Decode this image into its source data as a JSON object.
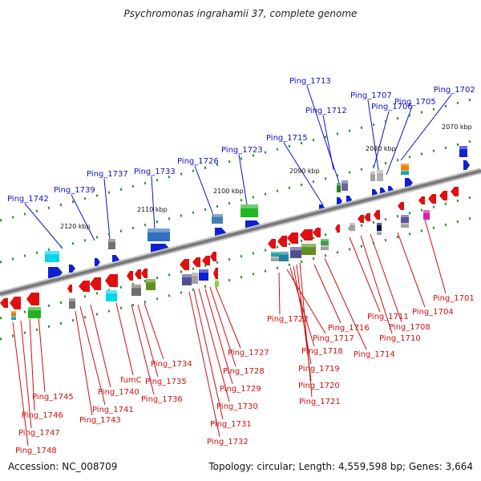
{
  "title": "Psychromonas ingrahamii 37, complete genome",
  "accession": "Accession: NC_008709",
  "topology": "Topology: circular; Length: 4,559,598 bp; Genes: 3,664",
  "ticks": [
    "2120 kbp",
    "2110 kbp",
    "2100 kbp",
    "2090 kbp",
    "2080 kbp",
    "2070 kbp"
  ],
  "blue_labels": [
    "Ping_1742",
    "Ping_1739",
    "Ping_1737",
    "Ping_1733",
    "Ping_1726",
    "Ping_1723",
    "Ping_1715",
    "Ping_1713",
    "Ping_1712",
    "Ping_1707",
    "Ping_1706",
    "Ping_1705",
    "Ping_1702"
  ],
  "red_labels": [
    "Ping_1745",
    "Ping_1746",
    "Ping_1747",
    "Ping_1748",
    "Ping_1740",
    "Ping_1741",
    "Ping_1743",
    "fumC",
    "Ping_1734",
    "Ping_1735",
    "Ping_1736",
    "Ping_1727",
    "Ping_1728",
    "Ping_1729",
    "Ping_1730",
    "Ping_1731",
    "Ping_1732",
    "Ping_1722",
    "Ping_1717",
    "Ping_1718",
    "Ping_1719",
    "Ping_1720",
    "Ping_1721",
    "Ping_1716",
    "Ping_1714",
    "Ping_1711",
    "Ping_1710",
    "Ping_1708",
    "Ping_1704",
    "Ping_1701"
  ],
  "colors": {
    "axis": "#808080",
    "blue_label": "#1010cc",
    "red_label": "#cc1010",
    "tick_green": "#2e8b2e"
  }
}
